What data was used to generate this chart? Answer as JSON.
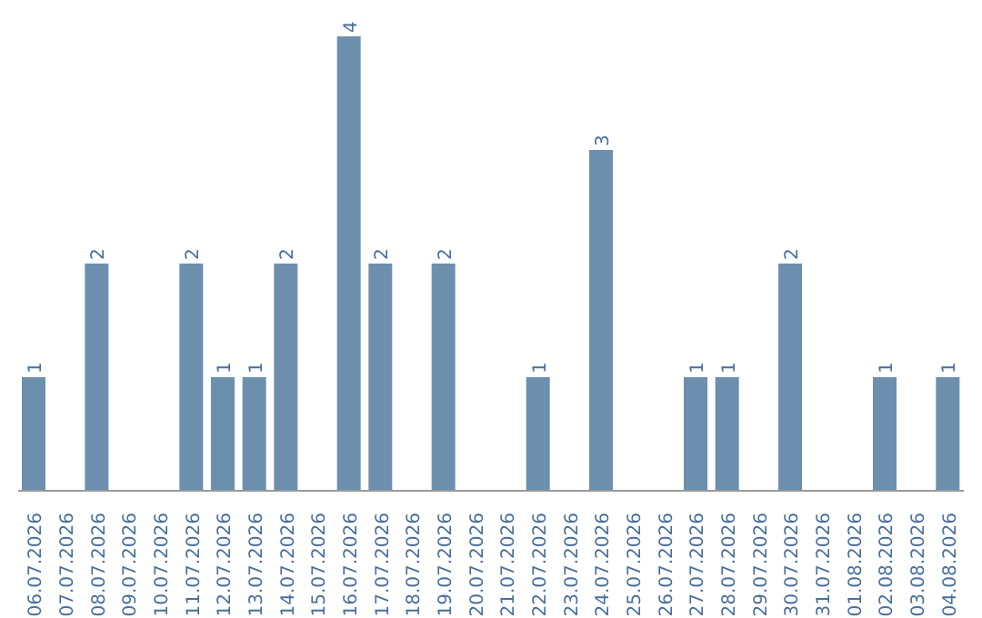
{
  "chart_data": {
    "type": "bar",
    "categories": [
      "06.07.2026",
      "07.07.2026",
      "08.07.2026",
      "09.07.2026",
      "10.07.2026",
      "11.07.2026",
      "12.07.2026",
      "13.07.2026",
      "14.07.2026",
      "15.07.2026",
      "16.07.2026",
      "17.07.2026",
      "18.07.2026",
      "19.07.2026",
      "20.07.2026",
      "21.07.2026",
      "22.07.2026",
      "23.07.2026",
      "24.07.2026",
      "25.07.2026",
      "26.07.2026",
      "27.07.2026",
      "28.07.2026",
      "29.07.2026",
      "30.07.2026",
      "31.07.2026",
      "01.08.2026",
      "02.08.2026",
      "03.08.2026",
      "04.08.2026"
    ],
    "values": [
      1,
      0,
      2,
      0,
      0,
      2,
      1,
      1,
      2,
      0,
      4,
      2,
      0,
      2,
      0,
      0,
      1,
      0,
      3,
      0,
      0,
      1,
      1,
      0,
      2,
      0,
      0,
      1,
      0,
      1
    ],
    "value_labels": [
      "1",
      null,
      "2",
      null,
      null,
      "2",
      "1",
      "1",
      "2",
      null,
      "4",
      "2",
      null,
      "2",
      null,
      null,
      "1",
      null,
      "3",
      null,
      null,
      "1",
      "1",
      null,
      "2",
      null,
      null,
      "1",
      null,
      "1"
    ],
    "color": "#6d8fae"
  }
}
